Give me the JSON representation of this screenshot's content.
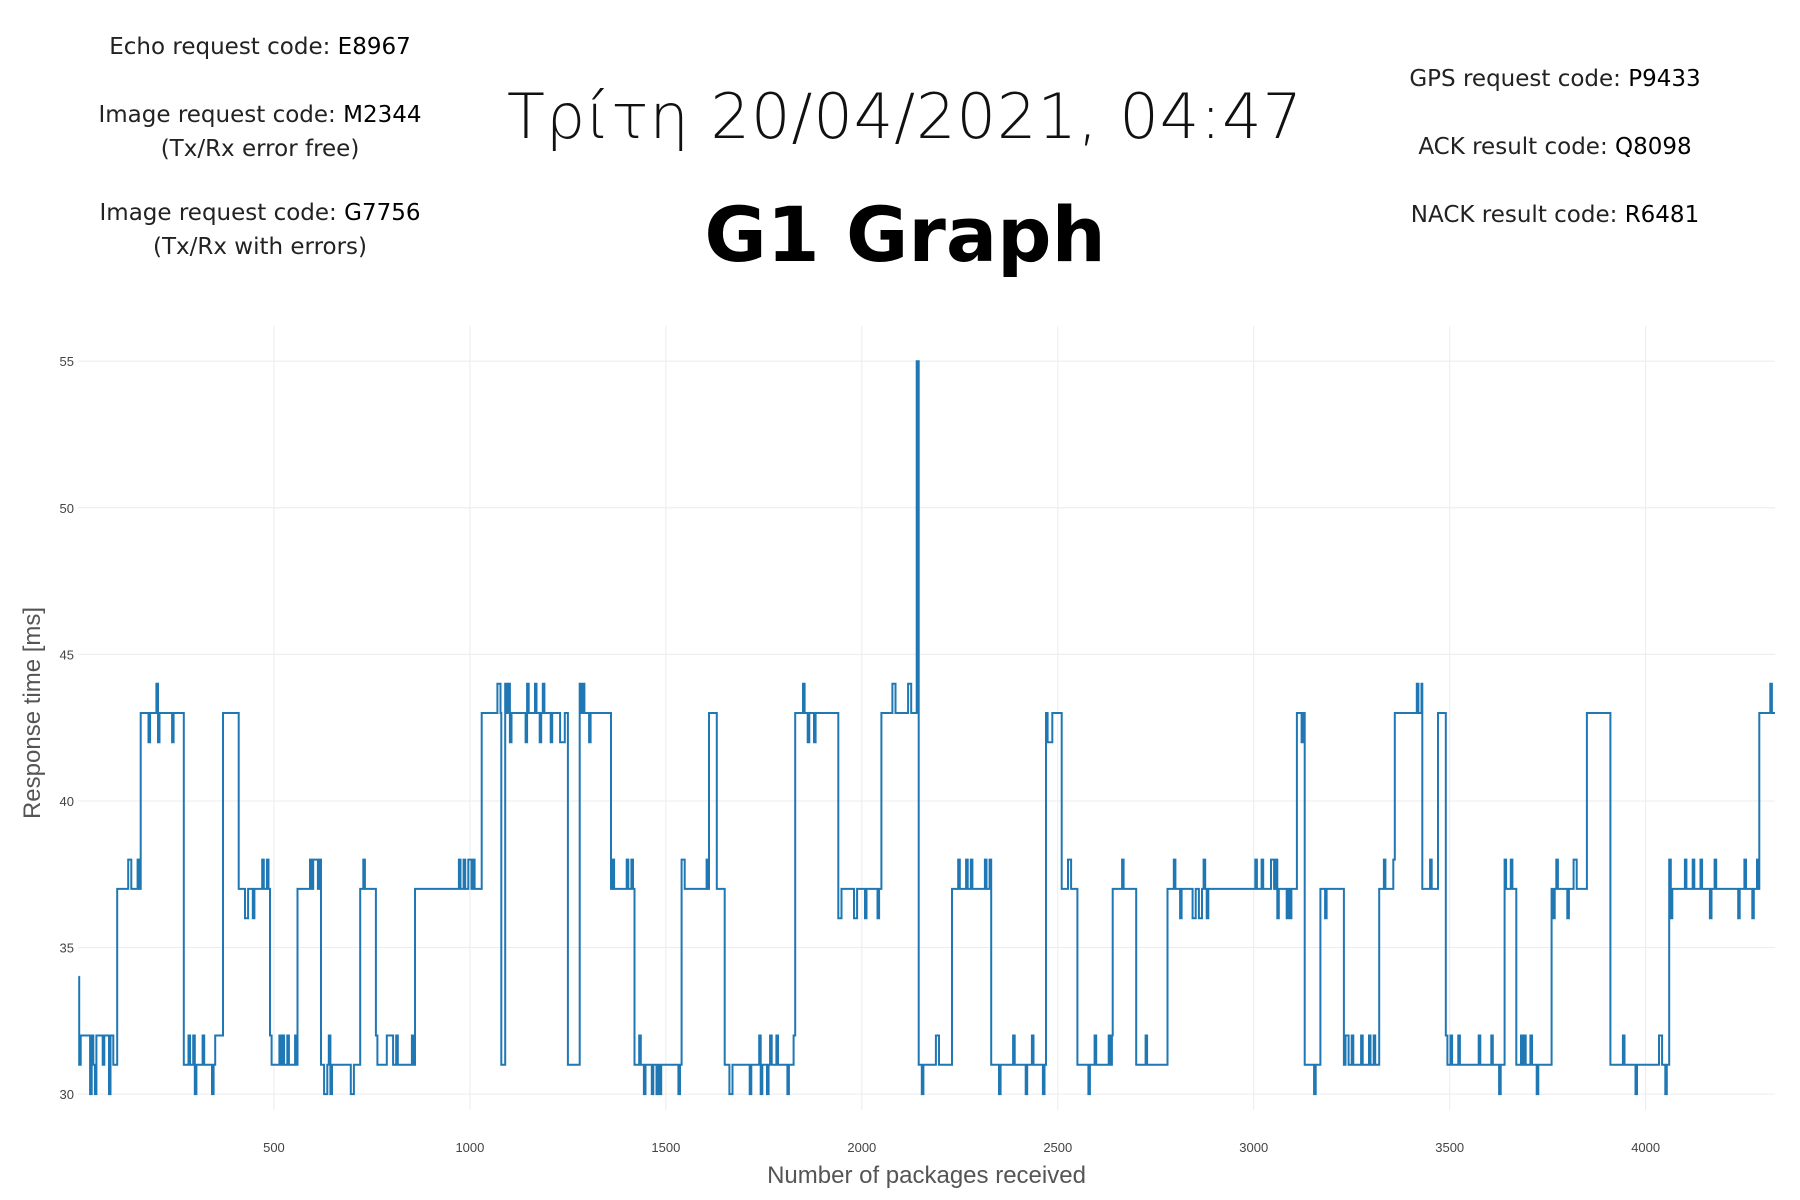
{
  "header": {
    "left": [
      {
        "label": "Echo request code:",
        "code": "E8967",
        "note": ""
      },
      {
        "label": "Image request code:",
        "code": "M2344",
        "note": "(Tx/Rx error free)"
      },
      {
        "label": "Image request code:",
        "code": "G7756",
        "note": "(Tx/Rx with errors)"
      }
    ],
    "right": [
      {
        "label": "GPS request code:",
        "code": "P9433"
      },
      {
        "label": "ACK result code:",
        "code": "Q8098"
      },
      {
        "label": "NACK result code:",
        "code": "R6481"
      }
    ],
    "date": "Τρίτη 20/04/2021, 04:47",
    "title": "G1 Graph"
  },
  "chart_data": {
    "type": "line",
    "title": "G1 Graph",
    "xlabel": "Number of packages received",
    "ylabel": "Response time [ms]",
    "xlim": [
      0,
      4330
    ],
    "ylim": [
      29.8,
      56.2
    ],
    "x_ticks": [
      500,
      1000,
      1500,
      2000,
      2500,
      3000,
      3500,
      4000
    ],
    "y_ticks": [
      30,
      35,
      40,
      45,
      50,
      55
    ],
    "grid": true,
    "legend": "none",
    "line_color": "#1f77b4",
    "series": [
      {
        "levels": [
          [
            1,
            34
          ],
          [
            3,
            32
          ],
          [
            90,
            31
          ],
          [
            100,
            37
          ],
          [
            160,
            43
          ],
          [
            270,
            31
          ],
          [
            350,
            32
          ],
          [
            370,
            43
          ],
          [
            410,
            37
          ],
          [
            490,
            31
          ],
          [
            560,
            37
          ],
          [
            620,
            31
          ],
          [
            720,
            37
          ],
          [
            760,
            31
          ],
          [
            860,
            37
          ],
          [
            1030,
            43
          ],
          [
            1080,
            31
          ],
          [
            1090,
            43
          ],
          [
            1250,
            31
          ],
          [
            1280,
            43
          ],
          [
            1360,
            37
          ],
          [
            1420,
            31
          ],
          [
            1540,
            37
          ],
          [
            1610,
            43
          ],
          [
            1630,
            37
          ],
          [
            1650,
            31
          ],
          [
            1830,
            43
          ],
          [
            1940,
            37
          ],
          [
            2050,
            43
          ],
          [
            2140,
            55
          ],
          [
            2145,
            31
          ],
          [
            2230,
            37
          ],
          [
            2330,
            31
          ],
          [
            2470,
            43
          ],
          [
            2510,
            37
          ],
          [
            2550,
            31
          ],
          [
            2640,
            37
          ],
          [
            2700,
            31
          ],
          [
            2780,
            37
          ],
          [
            3110,
            43
          ],
          [
            3130,
            31
          ],
          [
            3170,
            37
          ],
          [
            3230,
            31
          ],
          [
            3320,
            37
          ],
          [
            3360,
            43
          ],
          [
            3430,
            37
          ],
          [
            3470,
            43
          ],
          [
            3490,
            31
          ],
          [
            3640,
            37
          ],
          [
            3670,
            31
          ],
          [
            3760,
            37
          ],
          [
            3850,
            43
          ],
          [
            3910,
            31
          ],
          [
            4060,
            37
          ],
          [
            4290,
            43
          ],
          [
            4330,
            43
          ]
        ],
        "noise": [
          [
            1,
            90,
            30,
            32
          ],
          [
            100,
            160,
            36,
            38
          ],
          [
            160,
            270,
            42,
            44
          ],
          [
            270,
            350,
            30,
            32
          ],
          [
            370,
            410,
            43,
            44
          ],
          [
            410,
            490,
            36,
            38
          ],
          [
            490,
            560,
            31,
            32
          ],
          [
            560,
            620,
            37,
            38
          ],
          [
            620,
            720,
            30,
            32
          ],
          [
            720,
            760,
            37,
            38
          ],
          [
            760,
            860,
            31,
            32
          ],
          [
            860,
            1030,
            37,
            38
          ],
          [
            1030,
            1080,
            43,
            44
          ],
          [
            1090,
            1250,
            42,
            44
          ],
          [
            1280,
            1360,
            42,
            44
          ],
          [
            1360,
            1420,
            37,
            38
          ],
          [
            1420,
            1540,
            30,
            32
          ],
          [
            1540,
            1610,
            36,
            38
          ],
          [
            1610,
            1630,
            42,
            44
          ],
          [
            1650,
            1830,
            30,
            32
          ],
          [
            1830,
            1940,
            42,
            44
          ],
          [
            1940,
            2050,
            36,
            38
          ],
          [
            2050,
            2140,
            43,
            44
          ],
          [
            2145,
            2230,
            30,
            32
          ],
          [
            2230,
            2330,
            37,
            38
          ],
          [
            2330,
            2470,
            30,
            32
          ],
          [
            2470,
            2510,
            42,
            43
          ],
          [
            2510,
            2550,
            36,
            38
          ],
          [
            2550,
            2640,
            30,
            32
          ],
          [
            2640,
            2700,
            36,
            38
          ],
          [
            2700,
            2780,
            30,
            32
          ],
          [
            2780,
            3110,
            36,
            38
          ],
          [
            3110,
            3130,
            42,
            44
          ],
          [
            3130,
            3170,
            30,
            32
          ],
          [
            3170,
            3230,
            36,
            37
          ],
          [
            3230,
            3320,
            31,
            32
          ],
          [
            3320,
            3360,
            37,
            38
          ],
          [
            3360,
            3430,
            43,
            44
          ],
          [
            3430,
            3470,
            36,
            38
          ],
          [
            3470,
            3490,
            42,
            44
          ],
          [
            3490,
            3640,
            30,
            32
          ],
          [
            3640,
            3670,
            37,
            38
          ],
          [
            3670,
            3760,
            30,
            32
          ],
          [
            3760,
            3850,
            36,
            38
          ],
          [
            3850,
            3910,
            42,
            44
          ],
          [
            3910,
            4060,
            30,
            32
          ],
          [
            4060,
            4290,
            36,
            38
          ],
          [
            4290,
            4330,
            43,
            44
          ]
        ]
      }
    ]
  }
}
